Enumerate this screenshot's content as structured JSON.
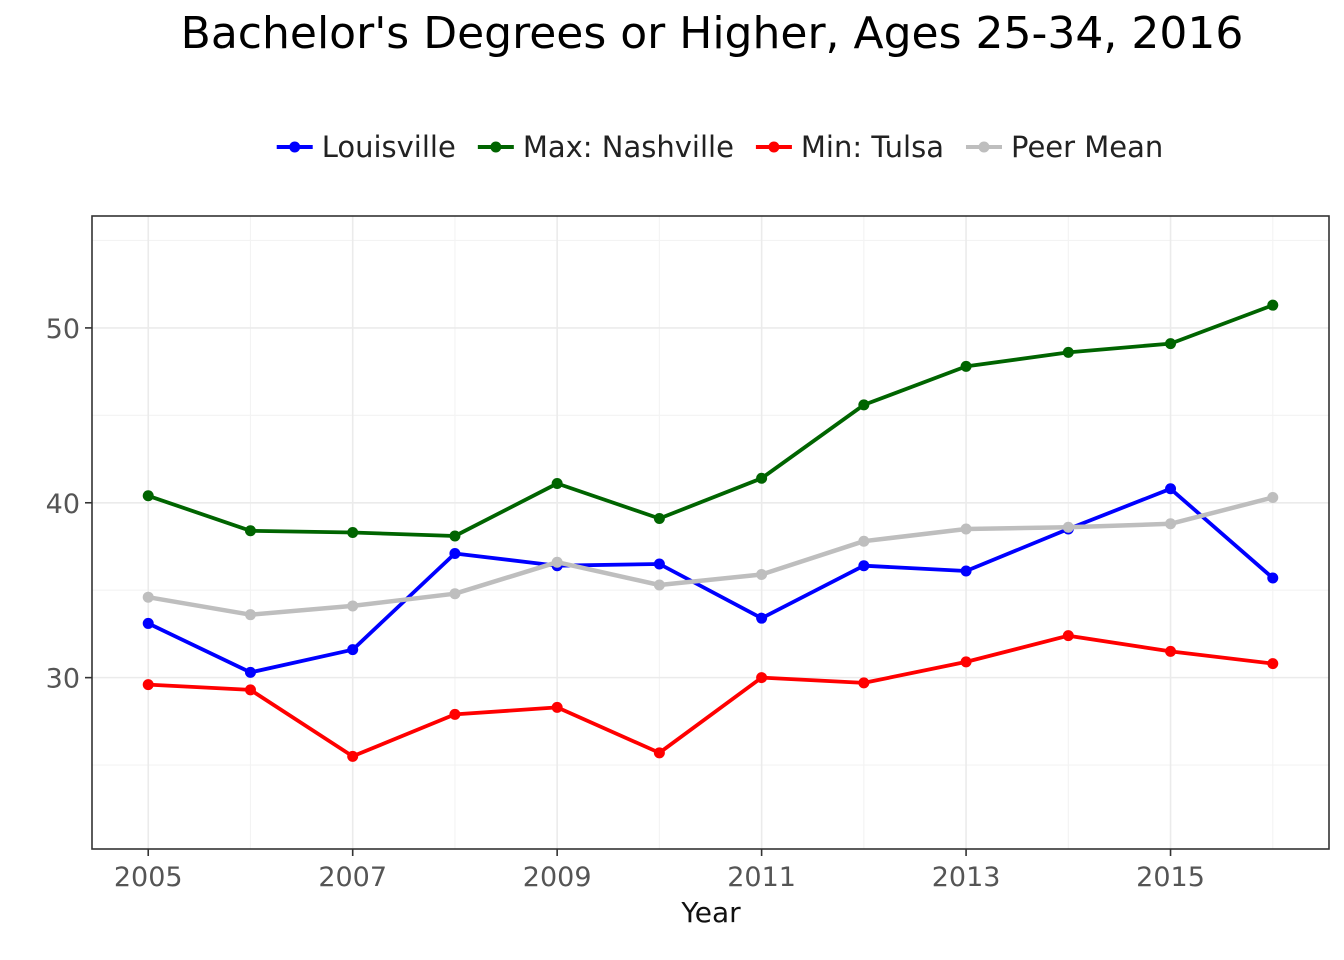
{
  "chart_data": {
    "type": "line",
    "title": "Bachelor's Degrees or Higher, Ages 25-34, 2016",
    "xlabel": "Year",
    "ylabel": "",
    "x": [
      2005,
      2006,
      2007,
      2008,
      2009,
      2010,
      2011,
      2012,
      2013,
      2014,
      2015,
      2016
    ],
    "xlim": [
      2004.45,
      2016.55
    ],
    "ylim": [
      20.2,
      56.4
    ],
    "x_ticks": [
      2005,
      2007,
      2009,
      2011,
      2013,
      2015
    ],
    "x_tick_labels": [
      "2005",
      "2007",
      "2009",
      "2011",
      "2013",
      "2015"
    ],
    "y_ticks": [
      30,
      40,
      50
    ],
    "y_tick_labels": [
      "30",
      "40",
      "50"
    ],
    "grid": true,
    "legend_position": "top",
    "series": [
      {
        "name": "Louisville",
        "color": "#0000ff",
        "values": [
          33.1,
          30.3,
          31.6,
          37.1,
          36.4,
          36.5,
          33.4,
          36.4,
          36.1,
          38.5,
          40.8,
          35.7
        ]
      },
      {
        "name": "Max: Nashville",
        "color": "#006400",
        "values": [
          40.4,
          38.4,
          38.3,
          38.1,
          41.1,
          39.1,
          41.4,
          45.6,
          47.8,
          48.6,
          49.1,
          51.3
        ]
      },
      {
        "name": "Min: Tulsa",
        "color": "#ff0000",
        "values": [
          29.6,
          29.3,
          25.5,
          27.9,
          28.3,
          25.7,
          30.0,
          29.7,
          30.9,
          32.4,
          31.5,
          30.8
        ]
      },
      {
        "name": "Peer Mean",
        "color": "#bebebe",
        "values": [
          34.6,
          33.6,
          34.1,
          34.8,
          36.6,
          35.3,
          35.9,
          37.8,
          38.5,
          38.6,
          38.8,
          40.3
        ]
      }
    ]
  }
}
